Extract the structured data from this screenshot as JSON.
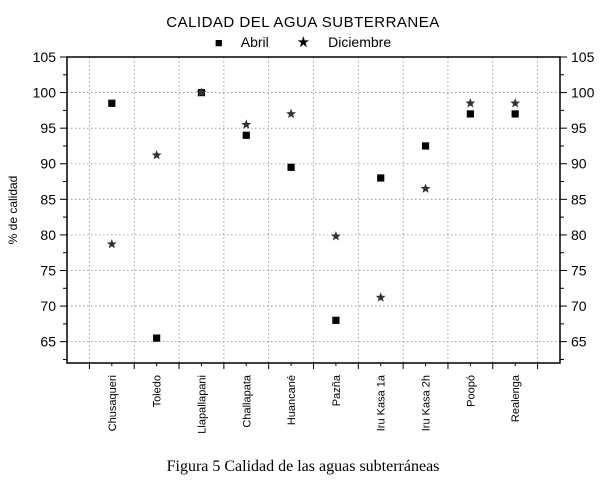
{
  "chart_data": {
    "type": "scatter",
    "title": "CALIDAD DEL AGUA SUBTERRANEA",
    "ylabel": "% de calidad",
    "xlabel": "",
    "ylim": [
      62,
      105
    ],
    "yticks": [
      65,
      70,
      75,
      80,
      85,
      90,
      95,
      100,
      105
    ],
    "categories": [
      "Chusaqueri",
      "Toledo",
      "Llapallapani",
      "Challapata",
      "Huancané",
      "Pazña",
      "Iru Kasa 1a",
      "Iru Kasa 2h",
      "Poopó",
      "Realenga"
    ],
    "series": [
      {
        "name": "Abril",
        "marker": "square",
        "color": "#000000",
        "values": [
          98.5,
          65.5,
          100,
          94,
          89.5,
          68,
          88,
          92.5,
          97,
          97
        ]
      },
      {
        "name": "Diciembre",
        "marker": "star",
        "color": "#333333",
        "values": [
          78.7,
          91.2,
          100,
          95.5,
          97,
          79.8,
          71.2,
          86.5,
          98.5,
          98.5
        ]
      }
    ],
    "legend_position": "top-center",
    "grid": true,
    "grid_style": "dotted",
    "right_axis_mirror": true
  },
  "caption": "Figura 5 Calidad de las aguas subterráneas"
}
